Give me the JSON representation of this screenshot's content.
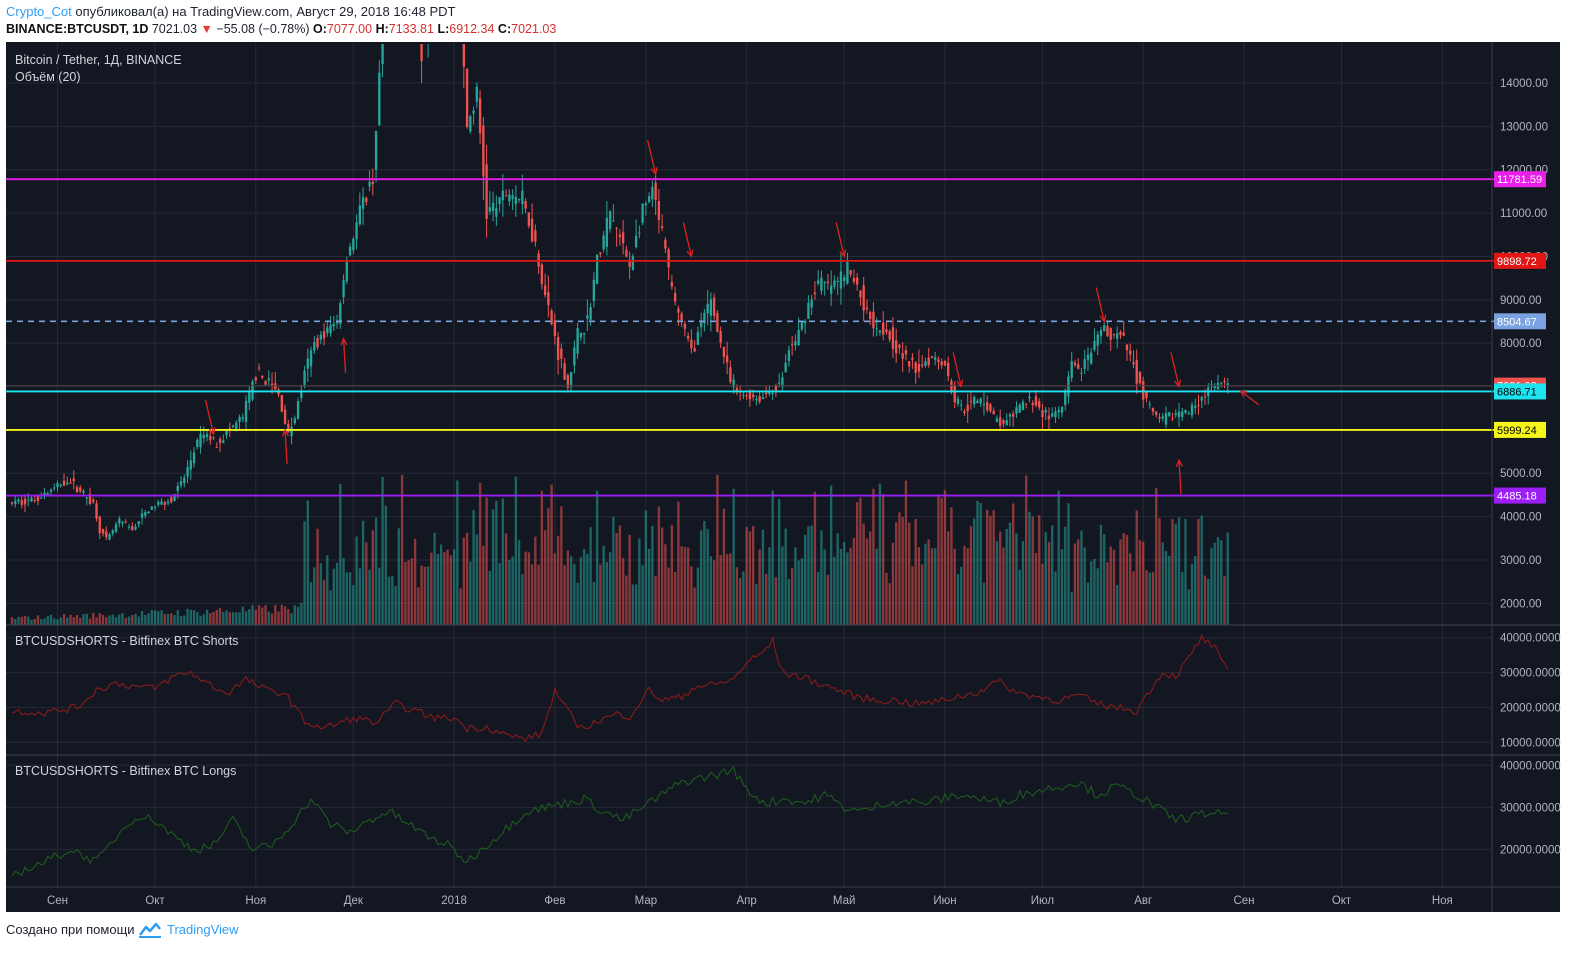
{
  "header": {
    "author": "Crypto_Cot",
    "published_text": "опубликовал(а) на TradingView.com, Август 29, 2018 16:48 PDT",
    "symbol": "BINANCE:BTCUSDT, 1D",
    "last": "7021.03",
    "change": "−55.08 (−0.78%)",
    "o_label": "O:",
    "o_val": "7077.00",
    "h_label": "H:",
    "h_val": "7133.81",
    "l_label": "L:",
    "l_val": "6912.34",
    "c_label": "C:",
    "c_val": "7021.03"
  },
  "footer": {
    "text": "Создано при помощи",
    "brand": "TradingView"
  },
  "colors": {
    "bg": "#131722",
    "grid": "#262a36",
    "up": "#26a69a",
    "down": "#ef5350",
    "arrow": "#e02020"
  },
  "chart_data": [
    {
      "type": "candlestick",
      "title": "Bitcoin / Tether, 1Д, BINANCE",
      "y_ticks": [
        2000,
        3000,
        4000,
        5000,
        6000,
        7000,
        8000,
        9000,
        10000,
        11000,
        12000,
        13000,
        14000
      ],
      "y_tick_labels": [
        "2000.00",
        "3000.00",
        "4000.00",
        "5000.00",
        "6000.00",
        "7000.00",
        "8000.00",
        "9000.00",
        "10000.00",
        "11000.00",
        "12000.00",
        "13000.00",
        "14000.00"
      ],
      "ylim": [
        1500,
        14900
      ],
      "x_labels": [
        "Сен",
        "Окт",
        "Ноя",
        "Дек",
        "2018",
        "Фев",
        "Мар",
        "Апр",
        "Май",
        "Июн",
        "Июл",
        "Авг",
        "Сен",
        "Окт",
        "Ноя"
      ],
      "x_label_days": [
        14,
        44,
        75,
        105,
        136,
        167,
        195,
        226,
        256,
        287,
        317,
        348,
        379,
        409,
        440
      ],
      "start_date": "2017-08-18",
      "days": 375,
      "key_points": [
        [
          0,
          4300
        ],
        [
          8,
          4400
        ],
        [
          14,
          4650
        ],
        [
          18,
          4850
        ],
        [
          22,
          4600
        ],
        [
          26,
          4300
        ],
        [
          28,
          3700
        ],
        [
          30,
          3450
        ],
        [
          34,
          3900
        ],
        [
          38,
          3700
        ],
        [
          42,
          4100
        ],
        [
          46,
          4300
        ],
        [
          50,
          4400
        ],
        [
          54,
          4900
        ],
        [
          58,
          5700
        ],
        [
          60,
          5900
        ],
        [
          64,
          5700
        ],
        [
          68,
          6000
        ],
        [
          72,
          6300
        ],
        [
          76,
          7300
        ],
        [
          80,
          7100
        ],
        [
          83,
          6800
        ],
        [
          86,
          5900
        ],
        [
          88,
          6300
        ],
        [
          91,
          7300
        ],
        [
          94,
          8000
        ],
        [
          98,
          8300
        ],
        [
          101,
          8500
        ],
        [
          104,
          10000
        ],
        [
          108,
          11000
        ],
        [
          112,
          11800
        ],
        [
          116,
          16500
        ],
        [
          120,
          19000
        ],
        [
          124,
          17000
        ],
        [
          127,
          14800
        ],
        [
          130,
          16000
        ],
        [
          133,
          18500
        ],
        [
          136,
          15200
        ],
        [
          138,
          16800
        ],
        [
          141,
          13000
        ],
        [
          144,
          13700
        ],
        [
          147,
          11000
        ],
        [
          150,
          11200
        ],
        [
          154,
          11500
        ],
        [
          158,
          11300
        ],
        [
          162,
          10300
        ],
        [
          165,
          9100
        ],
        [
          169,
          7800
        ],
        [
          172,
          7000
        ],
        [
          175,
          8200
        ],
        [
          178,
          8500
        ],
        [
          181,
          9900
        ],
        [
          185,
          11000
        ],
        [
          188,
          10400
        ],
        [
          191,
          9800
        ],
        [
          195,
          11000
        ],
        [
          198,
          11500
        ],
        [
          201,
          10500
        ],
        [
          204,
          9200
        ],
        [
          207,
          8500
        ],
        [
          210,
          7800
        ],
        [
          213,
          8400
        ],
        [
          216,
          9000
        ],
        [
          219,
          8000
        ],
        [
          222,
          7100
        ],
        [
          225,
          6800
        ],
        [
          228,
          6800
        ],
        [
          231,
          6700
        ],
        [
          234,
          6900
        ],
        [
          237,
          7000
        ],
        [
          240,
          7800
        ],
        [
          243,
          8200
        ],
        [
          246,
          8900
        ],
        [
          249,
          9400
        ],
        [
          252,
          9300
        ],
        [
          255,
          9400
        ],
        [
          258,
          9700
        ],
        [
          261,
          9300
        ],
        [
          264,
          8700
        ],
        [
          267,
          8400
        ],
        [
          270,
          8300
        ],
        [
          273,
          7900
        ],
        [
          276,
          7600
        ],
        [
          279,
          7400
        ],
        [
          282,
          7600
        ],
        [
          285,
          7700
        ],
        [
          288,
          7500
        ],
        [
          291,
          6700
        ],
        [
          294,
          6500
        ],
        [
          297,
          6650
        ],
        [
          300,
          6700
        ],
        [
          303,
          6300
        ],
        [
          306,
          6100
        ],
        [
          309,
          6350
        ],
        [
          312,
          6600
        ],
        [
          315,
          6700
        ],
        [
          318,
          6400
        ],
        [
          321,
          6300
        ],
        [
          324,
          6500
        ],
        [
          327,
          7500
        ],
        [
          330,
          7400
        ],
        [
          333,
          7700
        ],
        [
          336,
          8300
        ],
        [
          339,
          8200
        ],
        [
          342,
          8150
        ],
        [
          345,
          7700
        ],
        [
          348,
          7000
        ],
        [
          351,
          6500
        ],
        [
          354,
          6200
        ],
        [
          357,
          6300
        ],
        [
          360,
          6400
        ],
        [
          363,
          6400
        ],
        [
          366,
          6700
        ],
        [
          369,
          6900
        ],
        [
          372,
          7050
        ],
        [
          374,
          7021
        ]
      ],
      "levels": [
        {
          "value": 11781.59,
          "label": "11781.59",
          "color": "#e91ee9",
          "style": "solid"
        },
        {
          "value": 9898.72,
          "label": "9898.72",
          "color": "#e31616",
          "style": "solid"
        },
        {
          "value": 8504.67,
          "label": "8504.67",
          "color": "#7aa2e0",
          "style": "dashed"
        },
        {
          "value": 7021.03,
          "label": "7021.03",
          "color": "#ef5350",
          "style": "last"
        },
        {
          "value": 6886.71,
          "label": "6886.71",
          "color": "#1ee4ef",
          "style": "solid"
        },
        {
          "value": 5999.24,
          "label": "5999.24",
          "color": "#f5f51a",
          "style": "solid"
        },
        {
          "value": 4485.18,
          "label": "4485.18",
          "color": "#9b1ef5",
          "style": "solid"
        }
      ],
      "arrows_down": [
        [
          62,
          5900
        ],
        [
          198,
          11900
        ],
        [
          209,
          10000
        ],
        [
          256,
          10000
        ],
        [
          292,
          7000
        ],
        [
          336,
          8500
        ],
        [
          359,
          7000
        ]
      ],
      "arrows_up": [
        [
          84,
          6000
        ],
        [
          102,
          8100
        ],
        [
          359,
          5300
        ],
        [
          378,
          6900
        ]
      ],
      "volume_label": "Объём (20)"
    },
    {
      "type": "line",
      "title": "BTCUSDSHORTS - Bitfinex BTC Shorts",
      "y_ticks": [
        10000,
        20000,
        30000,
        40000
      ],
      "y_tick_labels": [
        "10000.0000",
        "20000.0000",
        "30000.0000",
        "40000.0000"
      ],
      "ylim": [
        7500,
        42500
      ],
      "color": "#8b1a1a",
      "key_points": [
        [
          0,
          19000
        ],
        [
          10,
          18500
        ],
        [
          20,
          20000
        ],
        [
          26,
          25000
        ],
        [
          32,
          27000
        ],
        [
          38,
          26000
        ],
        [
          44,
          25500
        ],
        [
          50,
          29000
        ],
        [
          55,
          30000
        ],
        [
          60,
          27000
        ],
        [
          66,
          24000
        ],
        [
          72,
          28000
        ],
        [
          78,
          25000
        ],
        [
          84,
          24000
        ],
        [
          90,
          16000
        ],
        [
          96,
          14000
        ],
        [
          102,
          16000
        ],
        [
          106,
          17000
        ],
        [
          112,
          15500
        ],
        [
          118,
          21000
        ],
        [
          124,
          19000
        ],
        [
          130,
          17000
        ],
        [
          136,
          17000
        ],
        [
          140,
          14000
        ],
        [
          146,
          14500
        ],
        [
          152,
          12000
        ],
        [
          158,
          11000
        ],
        [
          163,
          12500
        ],
        [
          167,
          25000
        ],
        [
          170,
          20000
        ],
        [
          175,
          14000
        ],
        [
          180,
          16000
        ],
        [
          186,
          18000
        ],
        [
          190,
          17500
        ],
        [
          196,
          25000
        ],
        [
          200,
          22000
        ],
        [
          206,
          23000
        ],
        [
          210,
          26000
        ],
        [
          216,
          26500
        ],
        [
          222,
          28000
        ],
        [
          226,
          33000
        ],
        [
          230,
          35000
        ],
        [
          234,
          39000
        ],
        [
          237,
          30000
        ],
        [
          242,
          29000
        ],
        [
          248,
          27000
        ],
        [
          254,
          25000
        ],
        [
          260,
          23000
        ],
        [
          266,
          22000
        ],
        [
          272,
          22000
        ],
        [
          278,
          21000
        ],
        [
          284,
          21500
        ],
        [
          290,
          23000
        ],
        [
          296,
          24000
        ],
        [
          300,
          26000
        ],
        [
          303,
          27500
        ],
        [
          306,
          26000
        ],
        [
          310,
          24000
        ],
        [
          316,
          23000
        ],
        [
          322,
          22000
        ],
        [
          328,
          23500
        ],
        [
          334,
          21000
        ],
        [
          340,
          20000
        ],
        [
          346,
          19000
        ],
        [
          350,
          25000
        ],
        [
          354,
          30000
        ],
        [
          358,
          29000
        ],
        [
          362,
          34000
        ],
        [
          366,
          40000
        ],
        [
          370,
          37000
        ],
        [
          374,
          30000
        ]
      ]
    },
    {
      "type": "line",
      "title": "BTCUSDSHORTS - Bitfinex BTC Longs",
      "y_ticks": [
        20000,
        30000,
        40000
      ],
      "y_tick_labels": [
        "20000.0000",
        "30000.0000",
        "40000.0000"
      ],
      "ylim": [
        12000,
        41500
      ],
      "color": "#1f5a1f",
      "key_points": [
        [
          0,
          14000
        ],
        [
          10,
          17000
        ],
        [
          18,
          20000
        ],
        [
          26,
          17000
        ],
        [
          32,
          23000
        ],
        [
          38,
          28000
        ],
        [
          44,
          27000
        ],
        [
          50,
          23000
        ],
        [
          56,
          20000
        ],
        [
          62,
          21000
        ],
        [
          68,
          27000
        ],
        [
          74,
          20000
        ],
        [
          80,
          21000
        ],
        [
          86,
          26000
        ],
        [
          92,
          32000
        ],
        [
          98,
          26000
        ],
        [
          104,
          24000
        ],
        [
          110,
          27000
        ],
        [
          116,
          29000
        ],
        [
          122,
          26000
        ],
        [
          128,
          23000
        ],
        [
          134,
          21000
        ],
        [
          140,
          17000
        ],
        [
          146,
          21000
        ],
        [
          152,
          25000
        ],
        [
          158,
          29000
        ],
        [
          164,
          30000
        ],
        [
          170,
          31000
        ],
        [
          176,
          32000
        ],
        [
          182,
          29000
        ],
        [
          188,
          27000
        ],
        [
          194,
          30000
        ],
        [
          200,
          33000
        ],
        [
          206,
          36000
        ],
        [
          212,
          37000
        ],
        [
          218,
          38000
        ],
        [
          222,
          39000
        ],
        [
          226,
          34000
        ],
        [
          232,
          31000
        ],
        [
          238,
          32000
        ],
        [
          244,
          31000
        ],
        [
          250,
          33000
        ],
        [
          256,
          30000
        ],
        [
          262,
          29000
        ],
        [
          268,
          31000
        ],
        [
          274,
          31500
        ],
        [
          280,
          31000
        ],
        [
          286,
          32000
        ],
        [
          292,
          33000
        ],
        [
          298,
          32000
        ],
        [
          304,
          31000
        ],
        [
          310,
          33000
        ],
        [
          316,
          34000
        ],
        [
          322,
          35000
        ],
        [
          328,
          36000
        ],
        [
          334,
          33000
        ],
        [
          340,
          35000
        ],
        [
          346,
          33000
        ],
        [
          352,
          30000
        ],
        [
          358,
          27000
        ],
        [
          364,
          28000
        ],
        [
          370,
          29000
        ],
        [
          374,
          27500
        ]
      ]
    }
  ]
}
